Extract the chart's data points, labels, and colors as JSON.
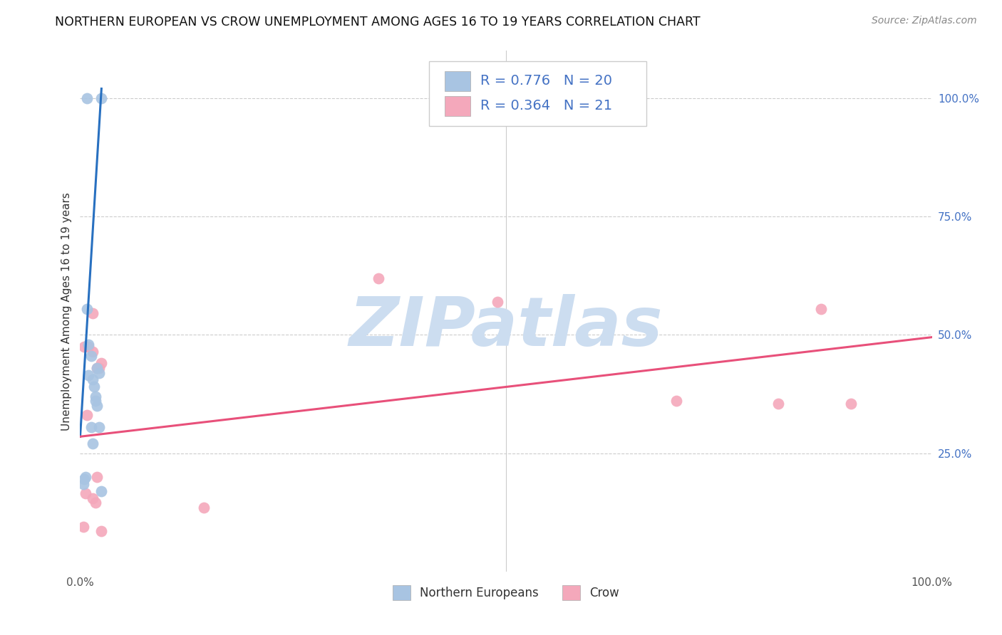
{
  "title": "NORTHERN EUROPEAN VS CROW UNEMPLOYMENT AMONG AGES 16 TO 19 YEARS CORRELATION CHART",
  "source": "Source: ZipAtlas.com",
  "ylabel_label": "Unemployment Among Ages 16 to 19 years",
  "legend_labels": [
    "Northern Europeans",
    "Crow"
  ],
  "R_blue": "0.776",
  "N_blue": "20",
  "R_pink": "0.364",
  "N_pink": "21",
  "blue_scatter_x": [
    0.008,
    0.01,
    0.013,
    0.02,
    0.01,
    0.015,
    0.016,
    0.018,
    0.018,
    0.02,
    0.022,
    0.013,
    0.015,
    0.022,
    0.025,
    0.008,
    0.006,
    0.005,
    0.004,
    0.025
  ],
  "blue_scatter_y": [
    0.555,
    0.48,
    0.455,
    0.43,
    0.415,
    0.405,
    0.39,
    0.37,
    0.36,
    0.35,
    0.42,
    0.305,
    0.27,
    0.305,
    1.0,
    1.0,
    0.2,
    0.195,
    0.185,
    0.17
  ],
  "pink_scatter_x": [
    0.005,
    0.01,
    0.015,
    0.015,
    0.02,
    0.022,
    0.025,
    0.008,
    0.006,
    0.004,
    0.015,
    0.018,
    0.35,
    0.49,
    0.145,
    0.7,
    0.82,
    0.87,
    0.905,
    0.02,
    0.025
  ],
  "pink_scatter_y": [
    0.475,
    0.475,
    0.465,
    0.545,
    0.43,
    0.43,
    0.44,
    0.33,
    0.165,
    0.095,
    0.155,
    0.145,
    0.62,
    0.57,
    0.135,
    0.36,
    0.355,
    0.555,
    0.355,
    0.2,
    0.085
  ],
  "blue_line": [
    [
      0.0,
      0.285
    ],
    [
      0.025,
      1.02
    ]
  ],
  "pink_line": [
    [
      0.0,
      0.285
    ],
    [
      1.0,
      0.495
    ]
  ],
  "xlim": [
    0.0,
    1.0
  ],
  "ylim": [
    0.0,
    1.1
  ],
  "ytick_vals": [
    0.25,
    0.5,
    0.75,
    1.0
  ],
  "ytick_labels": [
    "25.0%",
    "50.0%",
    "75.0%",
    "100.0%"
  ],
  "xtick_vals": [
    0.0,
    1.0
  ],
  "xtick_labels": [
    "0.0%",
    "100.0%"
  ],
  "blue_dot_color": "#a8c4e2",
  "pink_dot_color": "#f4a8bb",
  "blue_line_color": "#2870c0",
  "pink_line_color": "#e8507a",
  "right_tick_color": "#4472c4",
  "scatter_size": 130,
  "watermark": "ZIPatlas",
  "watermark_color": "#ccddf0",
  "legend_box_color": "#a8c4e2",
  "legend_box_color2": "#f4a8bb"
}
